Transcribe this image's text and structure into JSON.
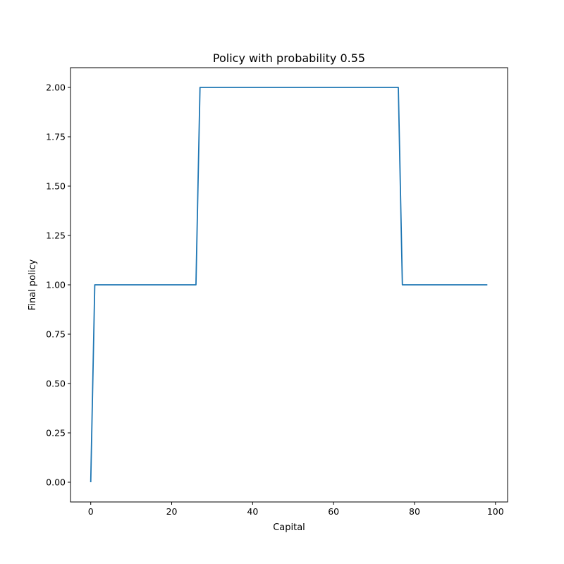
{
  "chart_data": {
    "type": "line",
    "title": "Policy with probability 0.55",
    "xlabel": "Capital",
    "ylabel": "Final policy",
    "xlim": [
      -5,
      103
    ],
    "ylim": [
      -0.1,
      2.1
    ],
    "xticks": [
      0,
      20,
      40,
      60,
      80,
      100
    ],
    "xtick_labels": [
      "0",
      "20",
      "40",
      "60",
      "80",
      "100"
    ],
    "yticks": [
      0.0,
      0.25,
      0.5,
      0.75,
      1.0,
      1.25,
      1.5,
      1.75,
      2.0
    ],
    "ytick_labels": [
      "0.00",
      "0.25",
      "0.50",
      "0.75",
      "1.00",
      "1.25",
      "1.50",
      "1.75",
      "2.00"
    ],
    "grid": false,
    "series": [
      {
        "color": "#1f77b4",
        "x": [
          0,
          1,
          26,
          27,
          76,
          77,
          98
        ],
        "y": [
          0,
          1,
          1,
          2,
          2,
          1,
          1
        ]
      }
    ]
  }
}
